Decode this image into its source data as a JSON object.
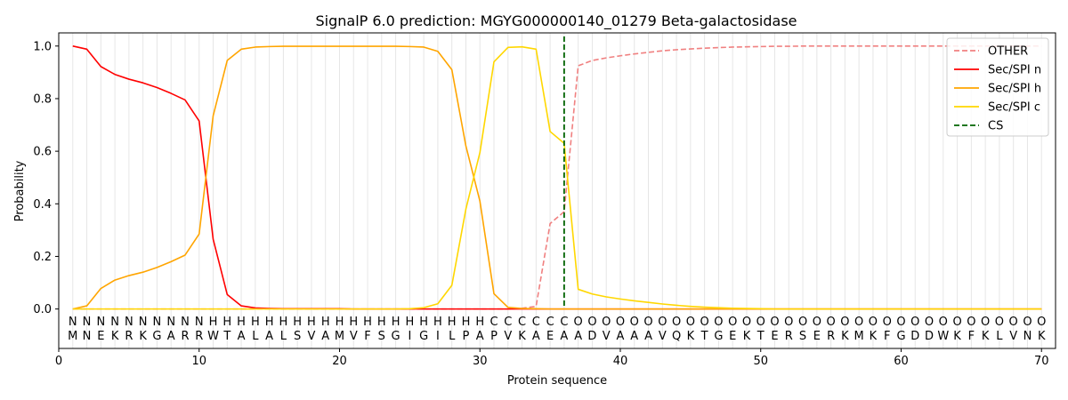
{
  "chart_data": {
    "type": "line",
    "title": "SignalP 6.0 prediction: MGYG000000140_01279 Beta-galactosidase",
    "xlabel": "Protein sequence",
    "ylabel": "Probability",
    "xlim": [
      0,
      71
    ],
    "ylim": [
      -0.15,
      1.05
    ],
    "x_ticks": [
      0,
      10,
      20,
      30,
      40,
      50,
      60,
      70
    ],
    "x_tick_labels": [
      "0",
      "10",
      "20",
      "30",
      "40",
      "50",
      "60",
      "70"
    ],
    "y_ticks": [
      0.0,
      0.2,
      0.4,
      0.6,
      0.8,
      1.0
    ],
    "y_tick_labels": [
      "0.0",
      "0.2",
      "0.4",
      "0.6",
      "0.8",
      "1.0"
    ],
    "grid": "vertical lines at each residue",
    "legend_position": "top-right",
    "sequence": [
      "M",
      "N",
      "E",
      "K",
      "R",
      "K",
      "G",
      "A",
      "R",
      "R",
      "W",
      "T",
      "A",
      "L",
      "A",
      "L",
      "S",
      "V",
      "A",
      "M",
      "V",
      "F",
      "S",
      "G",
      "I",
      "G",
      "I",
      "L",
      "P",
      "A",
      "P",
      "V",
      "K",
      "A",
      "E",
      "A",
      "A",
      "D",
      "V",
      "A",
      "A",
      "A",
      "V",
      "Q",
      "K",
      "T",
      "G",
      "E",
      "K",
      "T",
      "E",
      "R",
      "S",
      "E",
      "R",
      "K",
      "M",
      "K",
      "F",
      "G",
      "D",
      "D",
      "W",
      "K",
      "F",
      "K",
      "L",
      "V",
      "N",
      "K"
    ],
    "labels": [
      "N",
      "N",
      "N",
      "N",
      "N",
      "N",
      "N",
      "N",
      "N",
      "N",
      "H",
      "H",
      "H",
      "H",
      "H",
      "H",
      "H",
      "H",
      "H",
      "H",
      "H",
      "H",
      "H",
      "H",
      "H",
      "H",
      "H",
      "H",
      "H",
      "H",
      "C",
      "C",
      "C",
      "C",
      "C",
      "C",
      "O",
      "O",
      "O",
      "O",
      "O",
      "O",
      "O",
      "O",
      "O",
      "O",
      "O",
      "O",
      "O",
      "O",
      "O",
      "O",
      "O",
      "O",
      "O",
      "O",
      "O",
      "O",
      "O",
      "O",
      "O",
      "O",
      "O",
      "O",
      "O",
      "O",
      "O",
      "O",
      "O",
      "O"
    ],
    "label_colors": {
      "N": "#ff0000",
      "H": "#ffa500",
      "C": "#ffd700",
      "O": "#808080"
    },
    "series": [
      {
        "name": "OTHER",
        "color": "#f08080",
        "style": "dashed",
        "values": [
          0,
          0,
          0,
          0,
          0,
          0,
          0,
          0,
          0,
          0,
          0,
          0,
          0,
          0,
          0,
          0,
          0,
          0,
          0,
          0,
          0,
          0,
          0,
          0,
          0,
          0,
          0,
          0,
          0,
          0,
          0,
          0,
          0.003,
          0.01,
          0.325,
          0.37,
          0.925,
          0.945,
          0.955,
          0.963,
          0.97,
          0.976,
          0.982,
          0.986,
          0.989,
          0.992,
          0.994,
          0.996,
          0.997,
          0.998,
          0.999,
          0.999,
          1,
          1,
          1,
          1,
          1,
          1,
          1,
          1,
          1,
          1,
          1,
          1,
          1,
          1,
          1,
          1,
          1,
          1
        ]
      },
      {
        "name": "Sec/SPI n",
        "color": "#ff0000",
        "style": "solid",
        "values": [
          1.0,
          0.988,
          0.922,
          0.892,
          0.874,
          0.86,
          0.842,
          0.82,
          0.795,
          0.715,
          0.265,
          0.055,
          0.012,
          0.004,
          0.002,
          0.001,
          0.001,
          0.001,
          0.001,
          0.001,
          0,
          0,
          0,
          0,
          0,
          0,
          0,
          0,
          0,
          0,
          0,
          0,
          0,
          0,
          0,
          0,
          0,
          0,
          0,
          0,
          0,
          0,
          0,
          0,
          0,
          0,
          0,
          0,
          0,
          0,
          0,
          0,
          0,
          0,
          0,
          0,
          0,
          0,
          0,
          0,
          0,
          0,
          0,
          0,
          0,
          0,
          0,
          0,
          0,
          0
        ]
      },
      {
        "name": "Sec/SPI h",
        "color": "#ffa500",
        "style": "solid",
        "values": [
          0.0,
          0.012,
          0.078,
          0.11,
          0.127,
          0.14,
          0.158,
          0.18,
          0.205,
          0.285,
          0.735,
          0.945,
          0.988,
          0.996,
          0.998,
          0.999,
          0.999,
          0.999,
          0.999,
          0.999,
          0.999,
          0.999,
          0.999,
          0.999,
          0.998,
          0.996,
          0.98,
          0.91,
          0.62,
          0.41,
          0.058,
          0.006,
          0.002,
          0.001,
          0,
          0,
          0,
          0,
          0,
          0,
          0,
          0,
          0,
          0,
          0,
          0,
          0,
          0,
          0,
          0,
          0,
          0,
          0,
          0,
          0,
          0,
          0,
          0,
          0,
          0,
          0,
          0,
          0,
          0,
          0,
          0,
          0,
          0,
          0,
          0
        ]
      },
      {
        "name": "Sec/SPI c",
        "color": "#ffd700",
        "style": "solid",
        "values": [
          0,
          0,
          0,
          0,
          0,
          0,
          0,
          0,
          0,
          0,
          0,
          0,
          0,
          0,
          0,
          0,
          0,
          0,
          0,
          0,
          0,
          0,
          0,
          0,
          0.001,
          0.005,
          0.02,
          0.09,
          0.38,
          0.595,
          0.94,
          0.995,
          0.997,
          0.988,
          0.675,
          0.63,
          0.075,
          0.057,
          0.046,
          0.038,
          0.031,
          0.025,
          0.019,
          0.014,
          0.01,
          0.007,
          0.005,
          0.003,
          0.002,
          0.001,
          0,
          0,
          0,
          0,
          0,
          0,
          0,
          0,
          0,
          0,
          0,
          0,
          0,
          0,
          0,
          0,
          0,
          0,
          0,
          0
        ]
      }
    ],
    "cs_line": {
      "name": "CS",
      "x": 36,
      "color": "#006400",
      "style": "dashed"
    }
  }
}
